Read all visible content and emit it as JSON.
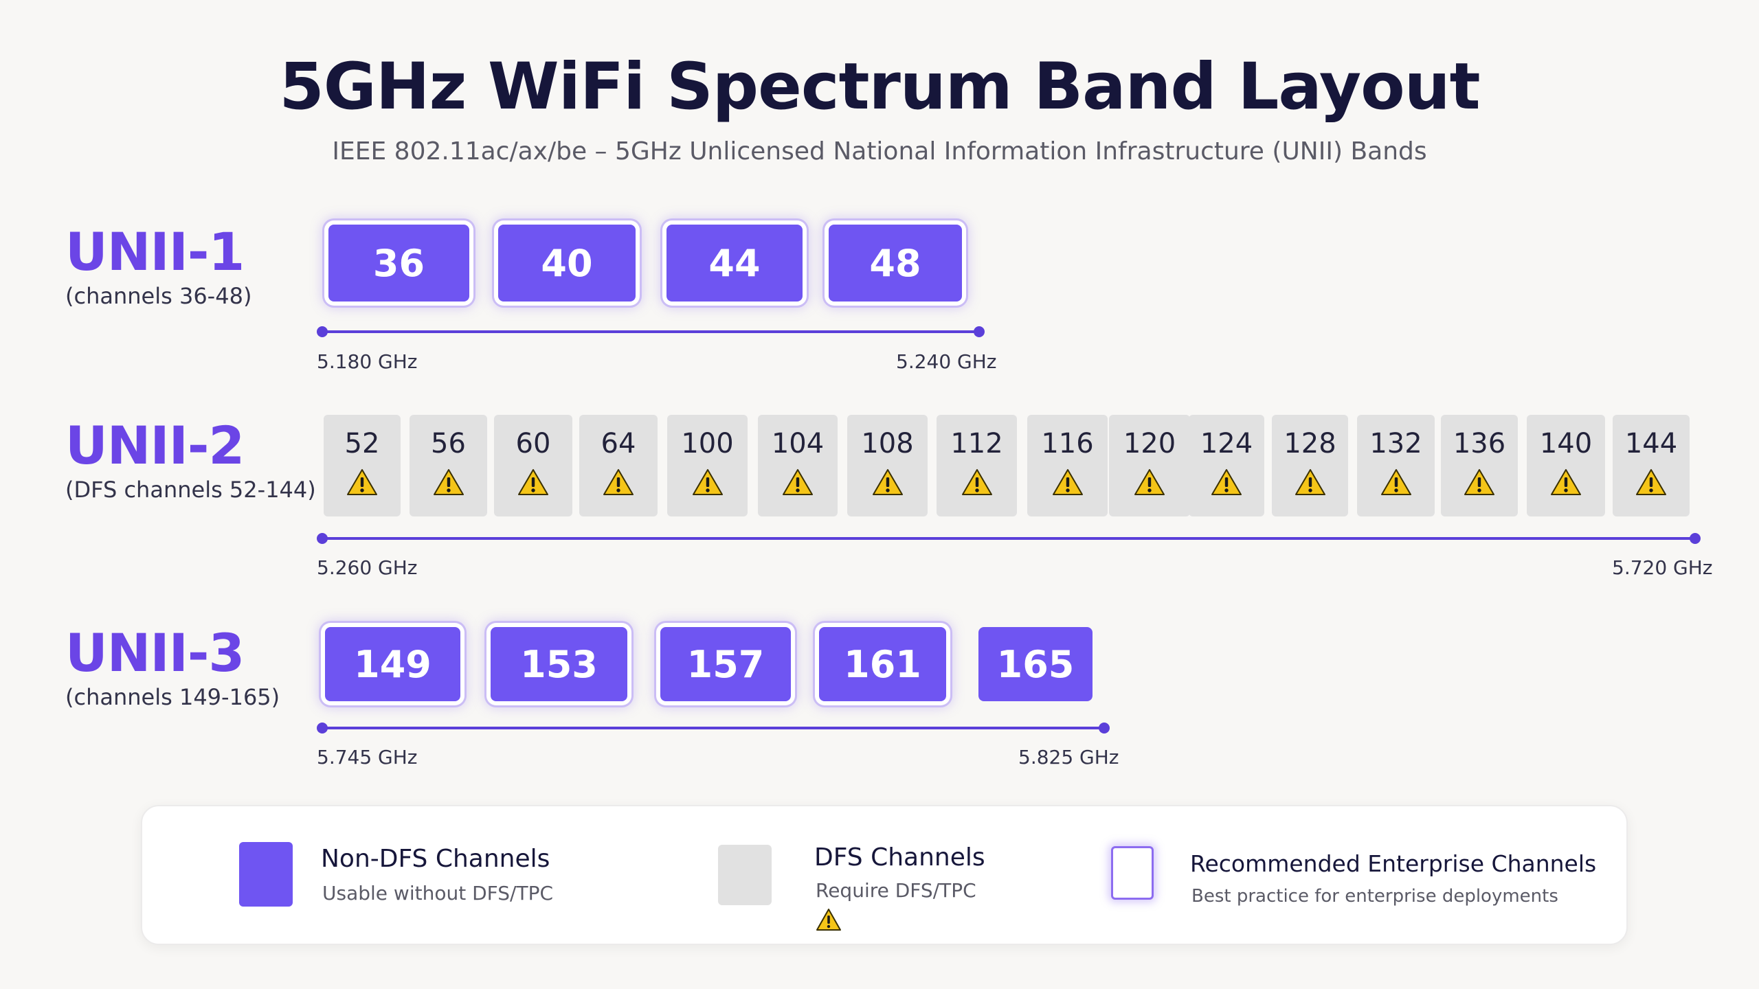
{
  "title": "5GHz  WiFi Spectrum Band Layout",
  "subtitle": "IEEE 802.11ac/ax/be – 5GHz Unlicensed National Information Infrastructure (UNII) Bands",
  "colors": {
    "non_dfs": "#6f55f2",
    "dfs": "#e1e1e1",
    "accent": "#6b45e6",
    "warning": "#f5c518"
  },
  "bands": [
    {
      "name": "UNII-1",
      "subtitle": "(channels 36-48)",
      "start_freq": "5.180 GHz",
      "end_freq": "5.240 GHz",
      "channels": [
        {
          "number": "36",
          "type": "non-dfs",
          "recommended": true
        },
        {
          "number": "40",
          "type": "non-dfs",
          "recommended": true
        },
        {
          "number": "44",
          "type": "non-dfs",
          "recommended": true
        },
        {
          "number": "48",
          "type": "non-dfs",
          "recommended": true
        }
      ]
    },
    {
      "name": "UNII-2",
      "subtitle": "(DFS channels 52-144)",
      "start_freq": "5.260 GHz",
      "end_freq": "5.720 GHz",
      "channels": [
        {
          "number": "52",
          "type": "dfs",
          "icon": "warning-icon"
        },
        {
          "number": "56",
          "type": "dfs",
          "icon": "warning-icon"
        },
        {
          "number": "60",
          "type": "dfs",
          "icon": "warning-icon"
        },
        {
          "number": "64",
          "type": "dfs",
          "icon": "warning-icon"
        },
        {
          "number": "100",
          "type": "dfs",
          "icon": "warning-icon"
        },
        {
          "number": "104",
          "type": "dfs",
          "icon": "warning-icon"
        },
        {
          "number": "108",
          "type": "dfs",
          "icon": "warning-icon"
        },
        {
          "number": "112",
          "type": "dfs",
          "icon": "warning-icon"
        },
        {
          "number": "116",
          "type": "dfs",
          "icon": "warning-icon"
        },
        {
          "number": "120",
          "type": "dfs",
          "icon": "warning-icon"
        },
        {
          "number": "124",
          "type": "dfs",
          "icon": "warning-icon"
        },
        {
          "number": "128",
          "type": "dfs",
          "icon": "warning-icon"
        },
        {
          "number": "132",
          "type": "dfs",
          "icon": "warning-icon"
        },
        {
          "number": "136",
          "type": "dfs",
          "icon": "warning-icon"
        },
        {
          "number": "140",
          "type": "dfs",
          "icon": "warning-icon"
        },
        {
          "number": "144",
          "type": "dfs",
          "icon": "warning-icon"
        }
      ]
    },
    {
      "name": "UNII-3",
      "subtitle": "(channels 149-165)",
      "start_freq": "5.745 GHz",
      "end_freq": "5.825 GHz",
      "channels": [
        {
          "number": "149",
          "type": "non-dfs",
          "recommended": true
        },
        {
          "number": "153",
          "type": "non-dfs",
          "recommended": true
        },
        {
          "number": "157",
          "type": "non-dfs",
          "recommended": true
        },
        {
          "number": "161",
          "type": "non-dfs",
          "recommended": true
        },
        {
          "number": "165",
          "type": "non-dfs",
          "recommended": false
        }
      ]
    }
  ],
  "legend": [
    {
      "title": "Non-DFS Channels",
      "description": "Usable without DFS/TPC"
    },
    {
      "title": "DFS Channels",
      "description": "Require DFS/TPC",
      "icon": "warning-icon"
    },
    {
      "title": "Recommended Enterprise Channels",
      "description": "Best practice for enterprise deployments"
    }
  ]
}
